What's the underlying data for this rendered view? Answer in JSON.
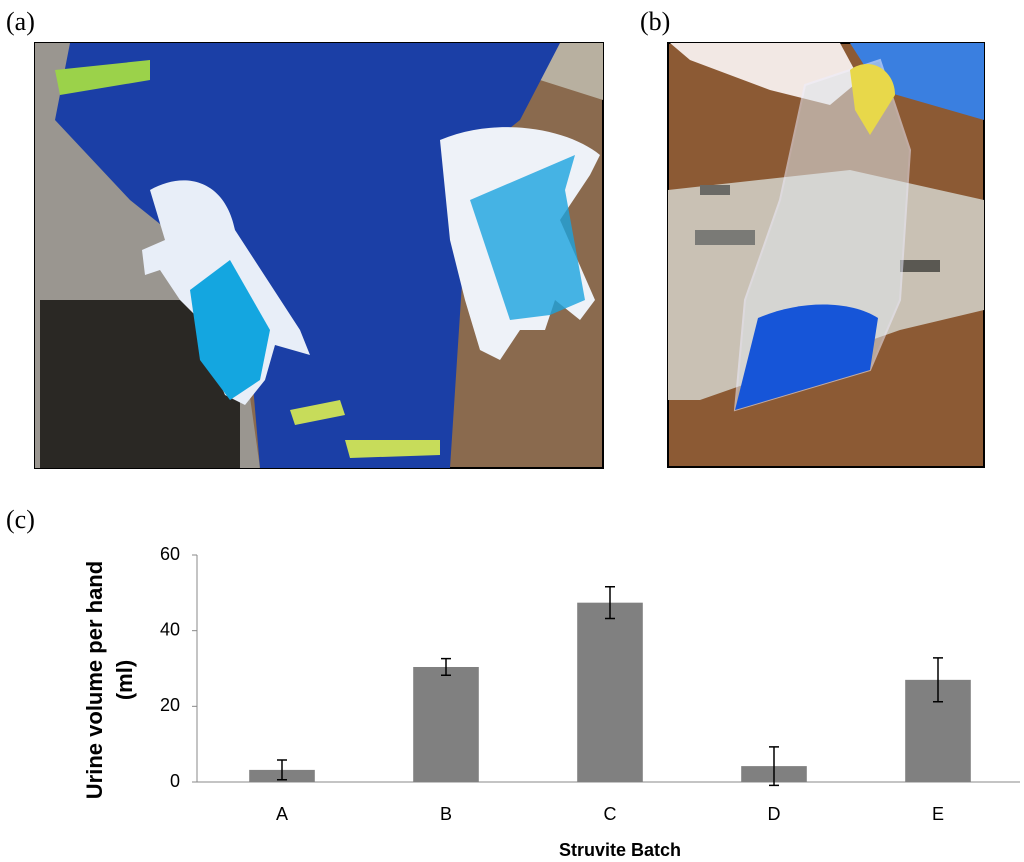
{
  "panel_labels": [
    "(a)",
    "(b)",
    "(c)"
  ],
  "chart_data": {
    "type": "bar",
    "ylabel": "Urine volume per hand (ml)",
    "xlabel": "Struvite Batch",
    "categories": [
      "A",
      "B",
      "C",
      "D",
      "E"
    ],
    "values": [
      3.2,
      30.4,
      47.4,
      4.2,
      27.0
    ],
    "errors": [
      2.6,
      2.2,
      4.2,
      5.1,
      5.8
    ],
    "color": "#808080",
    "ylim": [
      0,
      60
    ],
    "yticks": [
      0,
      20,
      40,
      60
    ],
    "grid": false
  }
}
